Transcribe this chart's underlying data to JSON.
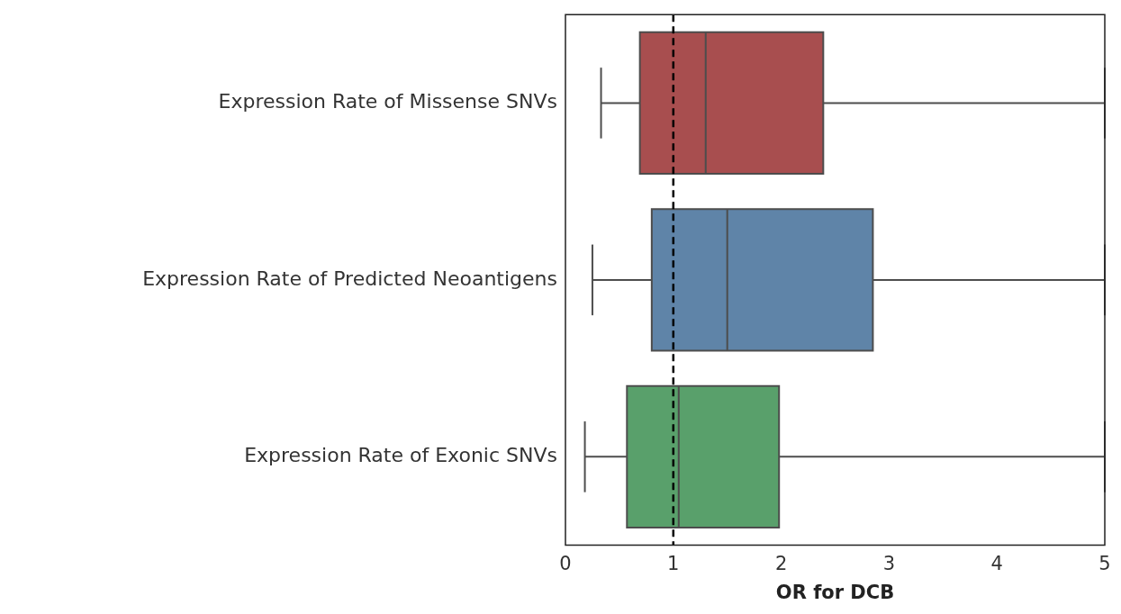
{
  "chart_data": {
    "type": "box",
    "orientation": "horizontal",
    "xlabel": "OR for DCB",
    "categories": [
      "Expression Rate of Missense SNVs",
      "Expression Rate of Predicted Neoantigens",
      "Expression Rate of Exonic SNVs"
    ],
    "colors": [
      "#a84e4f",
      "#5f84a8",
      "#59a06b"
    ],
    "boxes": [
      {
        "low": 0.33,
        "q1": 0.69,
        "median": 1.3,
        "q3": 2.39,
        "high": 5
      },
      {
        "low": 0.25,
        "q1": 0.8,
        "median": 1.5,
        "q3": 2.85,
        "high": 5
      },
      {
        "low": 0.18,
        "q1": 0.57,
        "median": 1.05,
        "q3": 1.98,
        "high": 5
      }
    ],
    "xlim": [
      0,
      5
    ],
    "xticks": [
      0,
      1,
      2,
      3,
      4,
      5
    ],
    "ref_lines": [
      {
        "axis": "x",
        "value": 1,
        "color": "#000000",
        "line_style": "dashed"
      }
    ]
  }
}
